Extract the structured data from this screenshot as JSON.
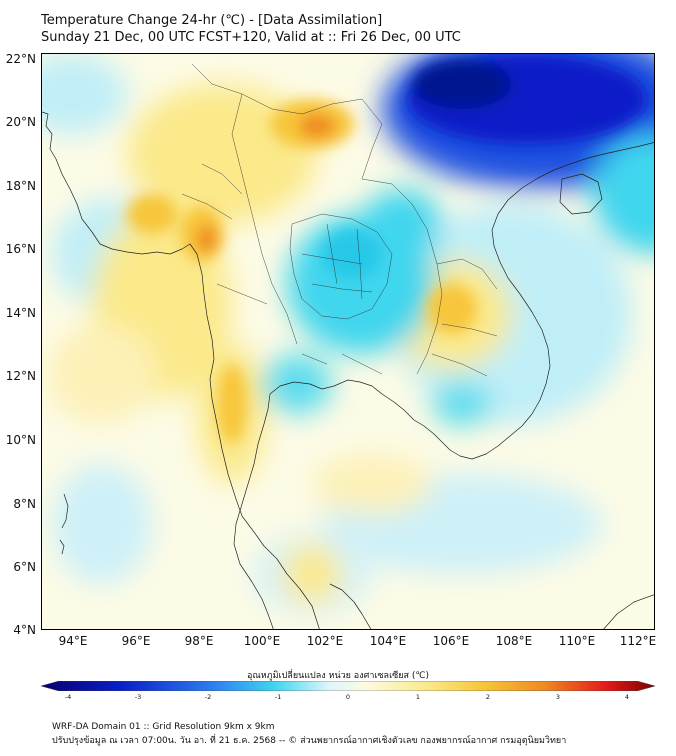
{
  "title": {
    "line1": "Temperature Change 24-hr (℃) - [Data Assimilation]",
    "line2": "Sunday 21 Dec, 00 UTC FCST+120, Valid at :: Fri 26 Dec, 00 UTC"
  },
  "map": {
    "lat_labels": [
      "22°N",
      "20°N",
      "18°N",
      "16°N",
      "14°N",
      "12°N",
      "10°N",
      "8°N",
      "6°N",
      "4°N"
    ],
    "lon_labels": [
      "94°E",
      "96°E",
      "98°E",
      "100°E",
      "102°E",
      "104°E",
      "106°E",
      "108°E",
      "110°E",
      "112°E"
    ],
    "extent": {
      "lon_min": 93.0,
      "lon_max": 112.5,
      "lat_min": 4.0,
      "lat_max": 22.2
    },
    "colors": {
      "strong_cold": "#0a1fc8",
      "cold": "#3fd6ee",
      "cool": "#bfeef8",
      "neutral": "#fdfdf0",
      "warm": "#fbe98a",
      "warmer": "#f7c63a",
      "hot": "#ef8a22"
    }
  },
  "colorbar": {
    "label": "อุณหภูมิเปลี่ยนแปลง หน่วย องศาเซลเซียส (℃)",
    "ticks": [
      "-4",
      "-3",
      "-2",
      "-1",
      "0",
      "1",
      "2",
      "3",
      "4"
    ],
    "range": [
      -4,
      4
    ]
  },
  "footer": {
    "line1": "WRF-DA Domain 01 :: Grid Resolution 9km x 9km",
    "line2": "ปรับปรุงข้อมูล ณ เวลา 07:00น. วัน อา. ที่ 21 ธ.ค. 2568 -- © ส่วนพยากรณ์อากาศเชิงตัวเลข กองพยากรณ์อากาศ กรมอุตุนิยมวิทยา"
  }
}
